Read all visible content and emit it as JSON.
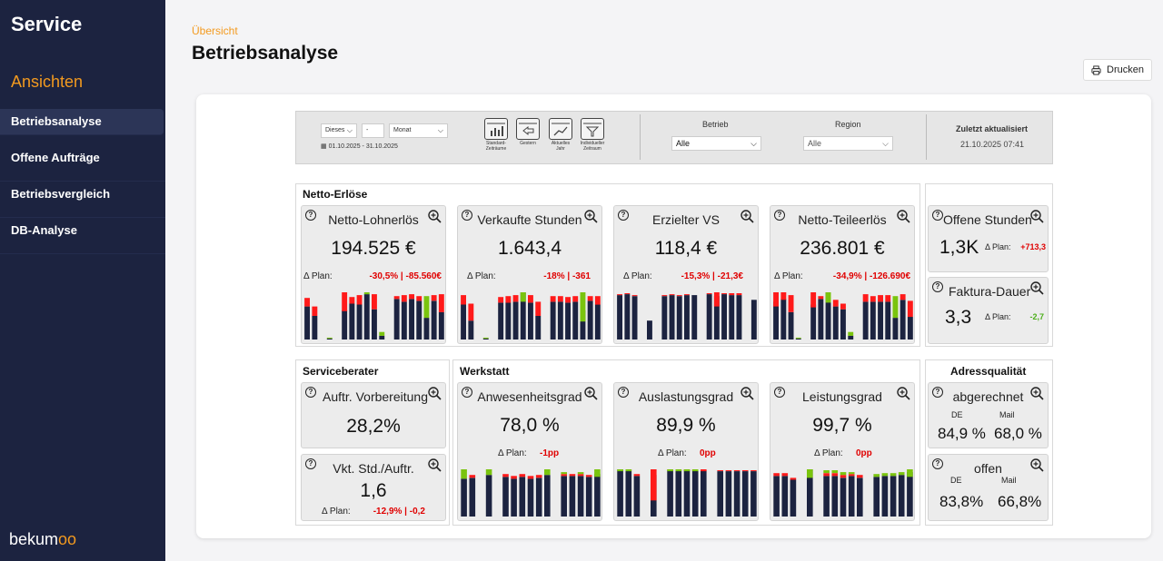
{
  "sidebar": {
    "brand": "Service",
    "section_title": "Ansichten",
    "items": [
      {
        "label": "Betriebsanalyse",
        "active": true
      },
      {
        "label": "Offene Aufträge"
      },
      {
        "label": "Betriebsvergleich"
      },
      {
        "label": "DB-Analyse"
      }
    ],
    "logo_text": "bekum",
    "logo_accent": "oo"
  },
  "header": {
    "breadcrumb": "Übersicht",
    "title": "Betriebsanalyse",
    "print_label": "Drucken"
  },
  "filters": {
    "period_a": "Dieses",
    "period_b": "-",
    "period_unit": "Monat",
    "date_range": "01.10.2025 - 31.10.2025",
    "quick": [
      {
        "label1": "Standard-",
        "label2": "Zeiträume"
      },
      {
        "label1": "Gestern",
        "label2": ""
      },
      {
        "label1": "Aktuelles",
        "label2": "Jahr"
      },
      {
        "label1": "Individueller",
        "label2": "Zeitraum"
      }
    ],
    "betrieb_label": "Betrieb",
    "betrieb_value": "Alle",
    "region_label": "Region",
    "region_value": "Alle",
    "updated_label": "Zuletzt aktualisiert",
    "updated_value": "21.10.2025 07:41"
  },
  "colors": {
    "navy": "#1c2340",
    "red": "#ff1a1a",
    "green": "#7ac40e",
    "accent": "#f39a1f"
  },
  "sections": {
    "netto": "Netto-Erlöse",
    "serviceberater": "Serviceberater",
    "werkstatt": "Werkstatt",
    "adress": "Adressqualität"
  },
  "plan_label": "Δ Plan:",
  "tiles": {
    "lohnerloes": {
      "title": "Netto-Lohnerlös",
      "value": "194.525 €",
      "plan": "-30,5% | -85.560€",
      "bars": [
        [
          0.7,
          0.18,
          0
        ],
        [
          0.5,
          0.2,
          0
        ],
        [
          0,
          0,
          0
        ],
        [
          0.02,
          0,
          0.02
        ],
        [
          0,
          0,
          0
        ],
        [
          0.62,
          0.4,
          0
        ],
        [
          0.76,
          0.14,
          0
        ],
        [
          0.74,
          0.2,
          0
        ],
        [
          0.96,
          0,
          0.04
        ],
        [
          0.64,
          0.32,
          0
        ],
        [
          0.08,
          0,
          0.08
        ],
        [
          0,
          0,
          0
        ],
        [
          0.86,
          0.06,
          0
        ],
        [
          0.8,
          0.14,
          0
        ],
        [
          0.86,
          0.1,
          0
        ],
        [
          0.82,
          0.1,
          0
        ],
        [
          0.46,
          0,
          0.46
        ],
        [
          0.82,
          0.12,
          0
        ],
        [
          0.58,
          0.38,
          0
        ]
      ]
    },
    "verkauft": {
      "title": "Verkaufte Stunden",
      "value": "1.643,4",
      "plan": "-18% | -361",
      "bars": [
        [
          0.74,
          0.2,
          0
        ],
        [
          0.4,
          0.36,
          0
        ],
        [
          0,
          0,
          0
        ],
        [
          0.02,
          0,
          0.02
        ],
        [
          0,
          0,
          0
        ],
        [
          0.78,
          0.12,
          0
        ],
        [
          0.78,
          0.14,
          0
        ],
        [
          0.8,
          0.14,
          0
        ],
        [
          1.0,
          0,
          0.2
        ],
        [
          0.78,
          0.16,
          0
        ],
        [
          0.5,
          0.3,
          0
        ],
        [
          0,
          0,
          0
        ],
        [
          0.8,
          0.12,
          0
        ],
        [
          0.8,
          0.12,
          0
        ],
        [
          0.78,
          0.12,
          0
        ],
        [
          0.8,
          0.12,
          0
        ],
        [
          0.62,
          0,
          0.62
        ],
        [
          0.82,
          0.1,
          0
        ],
        [
          0.74,
          0.18,
          0
        ]
      ]
    },
    "erzielt": {
      "title": "Erzielter VS",
      "value": "118,4 €",
      "plan": "-15,3% | -21,3€",
      "bars": [
        [
          0.94,
          0.02,
          0
        ],
        [
          0.96,
          0.02,
          0
        ],
        [
          0.92,
          0.02,
          0
        ],
        [
          0,
          0,
          0
        ],
        [
          0.4,
          0,
          0
        ],
        [
          0,
          0,
          0
        ],
        [
          0.92,
          0.02,
          0
        ],
        [
          0.94,
          0.02,
          0
        ],
        [
          0.92,
          0.02,
          0
        ],
        [
          0.94,
          0.02,
          0
        ],
        [
          0.94,
          0,
          0
        ],
        [
          0,
          0,
          0
        ],
        [
          0.96,
          0.02,
          0
        ],
        [
          0.92,
          0.3,
          0
        ],
        [
          0.96,
          0.02,
          0
        ],
        [
          0.94,
          0.04,
          0
        ],
        [
          0.94,
          0.04,
          0
        ],
        [
          0,
          0,
          0
        ],
        [
          0.84,
          0,
          0
        ]
      ]
    },
    "teile": {
      "title": "Netto-Teileerlös",
      "value": "236.801 €",
      "plan": "-34,9% | -126.690€",
      "bars": [
        [
          0.8,
          0.3,
          0
        ],
        [
          0.86,
          0.16,
          0
        ],
        [
          0.58,
          0.36,
          0
        ],
        [
          0.02,
          0,
          0.02
        ],
        [
          0,
          0,
          0
        ],
        [
          0.74,
          0.32,
          0
        ],
        [
          0.86,
          0.06,
          0
        ],
        [
          1.0,
          0,
          0.22
        ],
        [
          0.7,
          0.14,
          0
        ],
        [
          0.64,
          0.12,
          0
        ],
        [
          0.08,
          0,
          0.08
        ],
        [
          0,
          0,
          0
        ],
        [
          0.8,
          0.16,
          0
        ],
        [
          0.8,
          0.12,
          0
        ],
        [
          0.8,
          0.14,
          0
        ],
        [
          0.8,
          0.14,
          0
        ],
        [
          0.46,
          0,
          0.46
        ],
        [
          0.84,
          0.12,
          0
        ],
        [
          0.48,
          0.34,
          0
        ]
      ]
    },
    "offene_stunden": {
      "title": "Offene Stunden",
      "value": "1,3K",
      "plan": "+713,3"
    },
    "faktura": {
      "title": "Faktura-Dauer",
      "value": "3,3",
      "plan": "-2,7"
    },
    "vorbereitung": {
      "title": "Auftr. Vorbereitung",
      "value": "28,2%"
    },
    "vkt": {
      "title": "Vkt. Std./Auftr.",
      "value": "1,6",
      "plan": "-12,9% | -0,2"
    },
    "anwesenheit": {
      "title": "Anwesenheitsgrad",
      "value": "78,0 %",
      "plan": "-1pp",
      "bars": [
        [
          0.8,
          0,
          0.2
        ],
        [
          0.82,
          0.06,
          0
        ],
        [
          0,
          0,
          0
        ],
        [
          0.88,
          0,
          0.12
        ],
        [
          0,
          0,
          0
        ],
        [
          0.84,
          0.06,
          0
        ],
        [
          0.8,
          0.06,
          0
        ],
        [
          0.84,
          0.06,
          0
        ],
        [
          0.8,
          0.06,
          0
        ],
        [
          0.82,
          0.06,
          0
        ],
        [
          0.88,
          0,
          0.12
        ],
        [
          0,
          0,
          0
        ],
        [
          0.86,
          0.04,
          0.04
        ],
        [
          0.86,
          0.04,
          0
        ],
        [
          0.86,
          0.04,
          0.04
        ],
        [
          0.84,
          0.04,
          0
        ],
        [
          0.9,
          0,
          0.16
        ]
      ]
    },
    "auslastung": {
      "title": "Auslastungsgrad",
      "value": "89,9 %",
      "plan": "0pp",
      "bars": [
        [
          1.0,
          0,
          0.04
        ],
        [
          0.98,
          0.02,
          0.04
        ],
        [
          0.86,
          0.04,
          0
        ],
        [
          0,
          0,
          0
        ],
        [
          0.88,
          0.66,
          0
        ],
        [
          0,
          0,
          0
        ],
        [
          0.98,
          0.02,
          0.04
        ],
        [
          0.98,
          0.02,
          0.04
        ],
        [
          0.98,
          0.02,
          0.04
        ],
        [
          0.98,
          0.02,
          0.04
        ],
        [
          0.98,
          0.04,
          0
        ],
        [
          0,
          0,
          0
        ],
        [
          0.96,
          0.02,
          0
        ],
        [
          0.96,
          0.02,
          0
        ],
        [
          0.96,
          0.02,
          0
        ],
        [
          0.96,
          0.02,
          0
        ],
        [
          0.96,
          0.02,
          0
        ]
      ]
    },
    "leistung": {
      "title": "Leistungsgrad",
      "value": "99,7 %",
      "plan": "0pp",
      "bars": [
        [
          0.86,
          0.06,
          0
        ],
        [
          0.86,
          0.06,
          0
        ],
        [
          0.78,
          0.04,
          0
        ],
        [
          0,
          0,
          0
        ],
        [
          1.0,
          0,
          0.18
        ],
        [
          0,
          0,
          0
        ],
        [
          0.86,
          0.06,
          0.06
        ],
        [
          0.86,
          0.06,
          0.06
        ],
        [
          0.82,
          0.06,
          0.06
        ],
        [
          0.86,
          0.04,
          0.04
        ],
        [
          0.82,
          0.06,
          0
        ],
        [
          0,
          0,
          0
        ],
        [
          0.84,
          0,
          0.06
        ],
        [
          0.86,
          0,
          0.06
        ],
        [
          0.86,
          0,
          0.06
        ],
        [
          0.88,
          0,
          0.06
        ],
        [
          0.94,
          0,
          0.16
        ]
      ]
    },
    "abgerechnet": {
      "title": "abgerechnet",
      "de_label": "DE",
      "mail_label": "Mail",
      "de": "84,9 %",
      "mail": "68,0 %"
    },
    "offen": {
      "title": "offen",
      "de_label": "DE",
      "mail_label": "Mail",
      "de": "83,8%",
      "mail": "66,8%"
    }
  }
}
